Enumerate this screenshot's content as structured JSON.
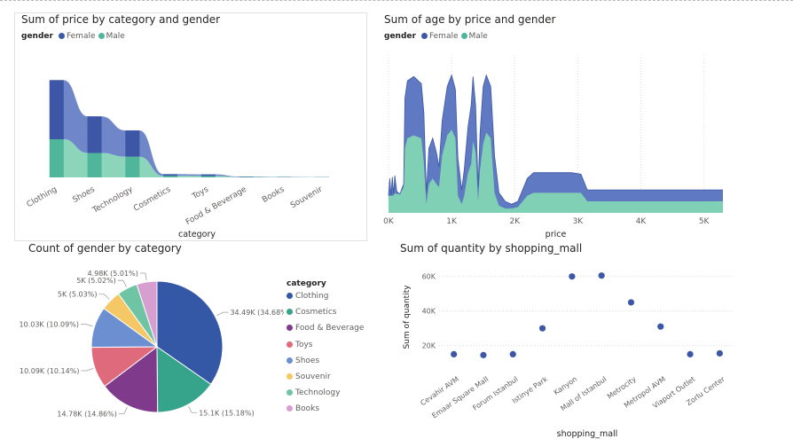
{
  "colors": {
    "female": "#3d57a6",
    "male": "#4fb59b",
    "female_area": "#5f79c2",
    "male_area": "#7fd0b4",
    "grid": "#dcdcdc",
    "axis_text": "#605e5c"
  },
  "legend": {
    "title": "gender",
    "female": "Female",
    "male": "Male"
  },
  "chart_data": [
    {
      "id": "price_by_category",
      "type": "area",
      "title": "Sum of price by category and gender",
      "xlabel": "category",
      "ylabel": "",
      "categories": [
        "Clothing",
        "Shoes",
        "Technology",
        "Cosmetics",
        "Toys",
        "Food & Beverage",
        "Books",
        "Souvenir"
      ],
      "series": [
        {
          "name": "Female",
          "values": [
            31.5,
            19.5,
            14.0,
            0.9,
            0.85,
            0.25,
            0.15,
            0.08
          ]
        },
        {
          "name": "Male",
          "values": [
            20.3,
            13.0,
            11.0,
            0.8,
            0.75,
            0.2,
            0.12,
            0.07
          ]
        }
      ],
      "stacked": true,
      "ylim": [
        0,
        60
      ]
    },
    {
      "id": "age_by_price",
      "type": "area",
      "title": "Sum of age by price and gender",
      "xlabel": "price",
      "ylabel": "",
      "x_ticks": [
        "0K",
        "1K",
        "2K",
        "3K",
        "4K",
        "5K"
      ],
      "xlim": [
        0,
        5300
      ],
      "ylim": [
        0,
        110
      ],
      "points": [
        [
          0,
          12,
          12
        ],
        [
          20,
          24,
          12
        ],
        [
          40,
          12,
          12
        ],
        [
          60,
          25,
          12
        ],
        [
          80,
          13,
          12
        ],
        [
          100,
          26,
          14
        ],
        [
          130,
          15,
          13
        ],
        [
          180,
          13,
          14
        ],
        [
          220,
          18,
          16
        ],
        [
          240,
          20,
          18
        ],
        [
          260,
          80,
          45
        ],
        [
          300,
          92,
          52
        ],
        [
          400,
          95,
          54
        ],
        [
          520,
          90,
          52
        ],
        [
          560,
          70,
          35
        ],
        [
          600,
          14,
          6
        ],
        [
          640,
          45,
          20
        ],
        [
          700,
          52,
          24
        ],
        [
          760,
          42,
          20
        ],
        [
          800,
          32,
          18
        ],
        [
          850,
          64,
          40
        ],
        [
          930,
          88,
          54
        ],
        [
          1000,
          96,
          58
        ],
        [
          1060,
          86,
          52
        ],
        [
          1100,
          38,
          12
        ],
        [
          1160,
          16,
          6
        ],
        [
          1200,
          30,
          12
        ],
        [
          1260,
          60,
          28
        ],
        [
          1310,
          75,
          34
        ],
        [
          1340,
          95,
          50
        ],
        [
          1380,
          75,
          42
        ],
        [
          1420,
          18,
          8
        ],
        [
          1450,
          55,
          30
        ],
        [
          1500,
          88,
          48
        ],
        [
          1550,
          96,
          56
        ],
        [
          1620,
          88,
          52
        ],
        [
          1680,
          40,
          14
        ],
        [
          1750,
          14,
          5
        ],
        [
          1850,
          8,
          3
        ],
        [
          1950,
          6,
          3
        ],
        [
          2050,
          8,
          4
        ],
        [
          2200,
          24,
          12
        ],
        [
          2300,
          28,
          14
        ],
        [
          2450,
          28,
          14
        ],
        [
          2650,
          28,
          14
        ],
        [
          2900,
          28,
          14
        ],
        [
          3050,
          27,
          14
        ],
        [
          3150,
          16,
          8
        ],
        [
          3400,
          16,
          8
        ],
        [
          4000,
          16,
          8
        ],
        [
          4600,
          16,
          8
        ],
        [
          5300,
          16,
          8
        ]
      ]
    },
    {
      "id": "gender_by_category",
      "type": "pie",
      "title": "Count of gender by category",
      "legend_title": "category",
      "slices": [
        {
          "label": "Clothing",
          "value": 34490,
          "text": "34.49K (34.68%)",
          "color": "#3457a6"
        },
        {
          "label": "Cosmetics",
          "value": 15100,
          "text": "15.1K (15.18%)",
          "color": "#36a38b"
        },
        {
          "label": "Food & Beverage",
          "value": 14780,
          "text": "14.78K (14.86%)",
          "color": "#7f3a8b"
        },
        {
          "label": "Toys",
          "value": 10090,
          "text": "10.09K (10.14%)",
          "color": "#de6a7b"
        },
        {
          "label": "Shoes",
          "value": 10030,
          "text": "10.03K (10.09%)",
          "color": "#6b8fd0"
        },
        {
          "label": "Souvenir",
          "value": 5000,
          "text": "5K (5.03%)",
          "color": "#f5c865"
        },
        {
          "label": "Technology",
          "value": 4990,
          "text": "5K (5.02%)",
          "color": "#6fc4a4"
        },
        {
          "label": "Books",
          "value": 4980,
          "text": "4.98K (5.01%)",
          "color": "#d79fd0"
        }
      ]
    },
    {
      "id": "quantity_by_mall",
      "type": "scatter",
      "title": "Sum of quantity by shopping_mall",
      "xlabel": "shopping_mall",
      "ylabel": "Sum of quantity",
      "categories": [
        "Cevahir AVM",
        "Emaar Square Mall",
        "Forum Istanbul",
        "Istinye Park",
        "Kanyon",
        "Mall of Istanbul",
        "Metrocity",
        "Metropol AVM",
        "Viaport Outlet",
        "Zorlu Center"
      ],
      "values": [
        15000,
        14500,
        15000,
        30000,
        60000,
        60500,
        45000,
        31000,
        15000,
        15500
      ],
      "y_ticks": [
        "20K",
        "40K",
        "60K"
      ],
      "ylim": [
        7000,
        66000
      ]
    }
  ]
}
